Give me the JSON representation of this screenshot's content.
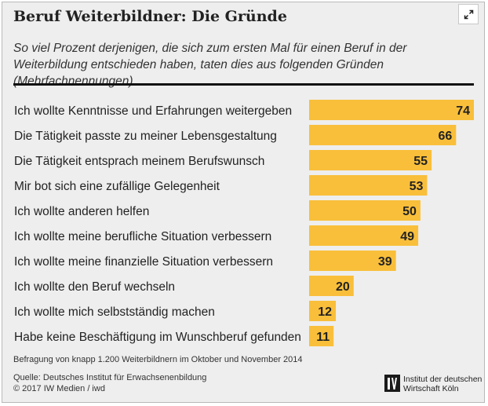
{
  "title": "Beruf Weiterbildner: Die Gründe",
  "subtitle": "So viel Prozent derjenigen, die sich zum ersten Mal für einen Beruf in der Weiterbildung entschieden haben, taten dies aus folgenden Gründen (Mehrfachnennungen)",
  "colors": {
    "bar": "#f9bf3b",
    "background": "#eeeeee",
    "text": "#222222",
    "rule": "#111111"
  },
  "chart_data": {
    "type": "bar",
    "orientation": "horizontal",
    "categories": [
      "Ich wollte Kenntnisse und Erfahrungen weitergeben",
      "Die Tätigkeit passte zu meiner Lebensgestaltung",
      "Die Tätigkeit entsprach meinem Berufswunsch",
      "Mir bot sich eine zufällige Gelegenheit",
      "Ich wollte anderen helfen",
      "Ich wollte meine berufliche Situation verbessern",
      "Ich wollte meine finanzielle Situation verbessern",
      "Ich wollte den Beruf wechseln",
      "Ich wollte mich selbstständig machen",
      "Habe keine Beschäftigung im Wunschberuf gefunden"
    ],
    "values": [
      74,
      66,
      55,
      53,
      50,
      49,
      39,
      20,
      12,
      11
    ],
    "unit": "Prozent",
    "xlim": [
      0,
      74
    ]
  },
  "footnote": "Befragung von knapp 1.200 Weiterbildnern im Oktober und November 2014",
  "source_line1": "Quelle: Deutsches Institut für Erwachsenenbildung",
  "source_line2": "© 2017 IW Medien / iwd",
  "logo": {
    "line1": "Institut der deutschen",
    "line2": "Wirtschaft Köln",
    "icon": "iw-logo-icon"
  },
  "expand_icon": "expand-icon"
}
